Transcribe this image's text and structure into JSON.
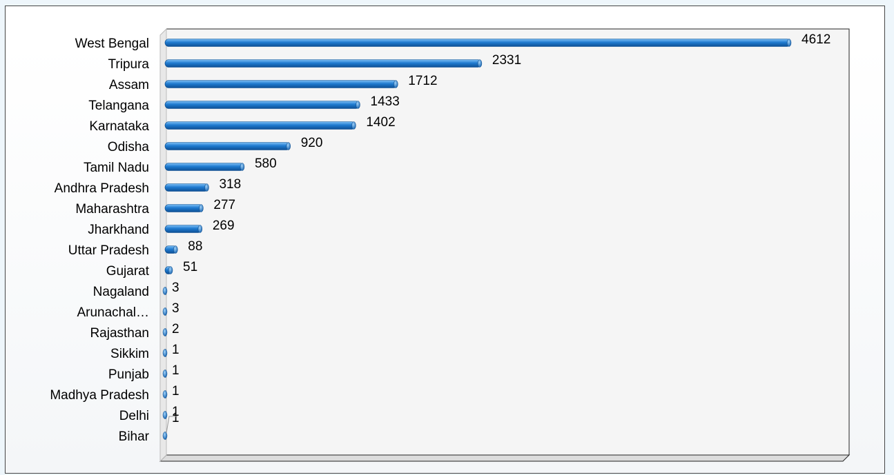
{
  "chart_data": {
    "type": "bar",
    "orientation": "horizontal",
    "title": "",
    "xlabel": "",
    "ylabel": "",
    "grid": false,
    "legend": "none",
    "xlim": [
      0,
      5000
    ],
    "bar_color": "#1f7bd0",
    "categories": [
      "West Bengal",
      "Tripura",
      "Assam",
      "Telangana",
      "Karnataka",
      "Odisha",
      "Tamil Nadu",
      "Andhra Pradesh",
      "Maharashtra",
      "Jharkhand",
      "Uttar Pradesh",
      "Gujarat",
      "Nagaland",
      "Arunachal…",
      "Rajasthan",
      "Sikkim",
      "Punjab",
      "Madhya Pradesh",
      "Delhi",
      "Bihar"
    ],
    "values": [
      4612,
      2331,
      1712,
      1433,
      1402,
      920,
      580,
      318,
      277,
      269,
      88,
      51,
      3,
      3,
      2,
      1,
      1,
      1,
      1,
      1
    ]
  }
}
